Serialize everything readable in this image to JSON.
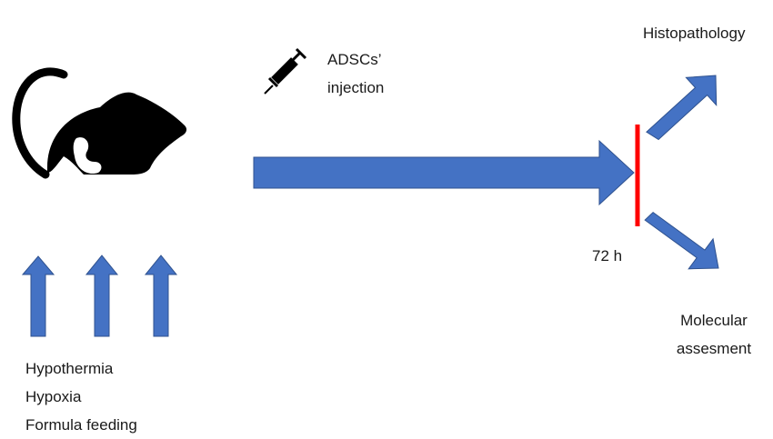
{
  "syringe_label": {
    "line1": "ADSCs’",
    "line2": "injection"
  },
  "timepoint_label": "72 h",
  "outcomes": {
    "top": "Histopathology",
    "bottom_line1": "Molecular",
    "bottom_line2": "assesment"
  },
  "risk_factors": [
    "Hypothermia",
    "Hypoxia",
    "Formula feeding"
  ],
  "colors": {
    "arrow": "#4472c4",
    "arrow_edge": "#2f528f",
    "marker": "#ff0000",
    "silhouette": "#000000"
  },
  "icons": {
    "animal": "rat-silhouette-icon",
    "injection": "syringe-icon"
  }
}
